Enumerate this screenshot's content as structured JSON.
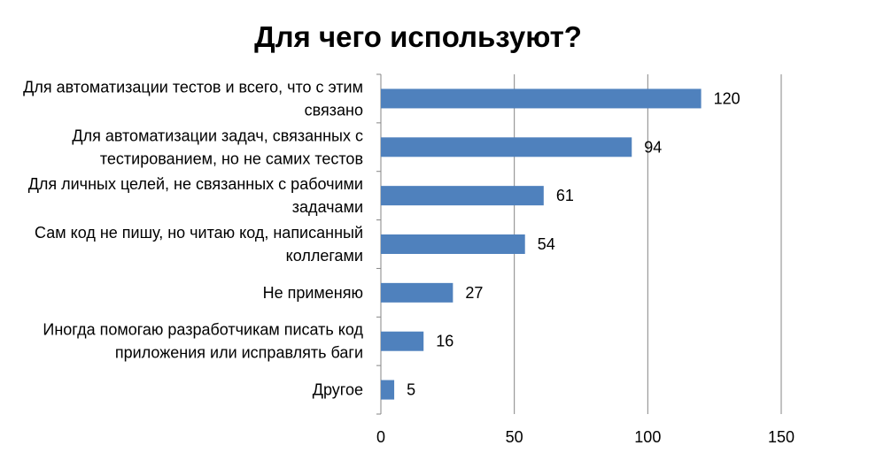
{
  "chart_data": {
    "type": "bar",
    "orientation": "horizontal",
    "title": "Для чего используют?",
    "categories": [
      [
        "Для автоматизации тестов и всего, что с этим",
        "связано"
      ],
      [
        "Для автоматизации задач, связанных с",
        "тестированием, но не самих тестов"
      ],
      [
        "Для личных целей, не связанных с рабочими",
        "задачами"
      ],
      [
        "Сам код не пишу, но читаю код, написанный",
        "коллегами"
      ],
      [
        "Не применяю"
      ],
      [
        "Иногда помогаю разработчикам писать код",
        "приложения или исправлять баги"
      ],
      [
        "Другое"
      ]
    ],
    "values": [
      120,
      94,
      61,
      54,
      27,
      16,
      5
    ],
    "value_labels": [
      "120",
      "94",
      "61",
      "54",
      "27",
      "16",
      "5"
    ],
    "xlim": [
      0,
      150
    ],
    "xticks": [
      0,
      50,
      100,
      150
    ],
    "xtick_labels": [
      "0",
      "50",
      "100",
      "150"
    ],
    "grid": true,
    "legend": "none",
    "bar_color": "#4f81bd",
    "grid_color": "#868686"
  }
}
